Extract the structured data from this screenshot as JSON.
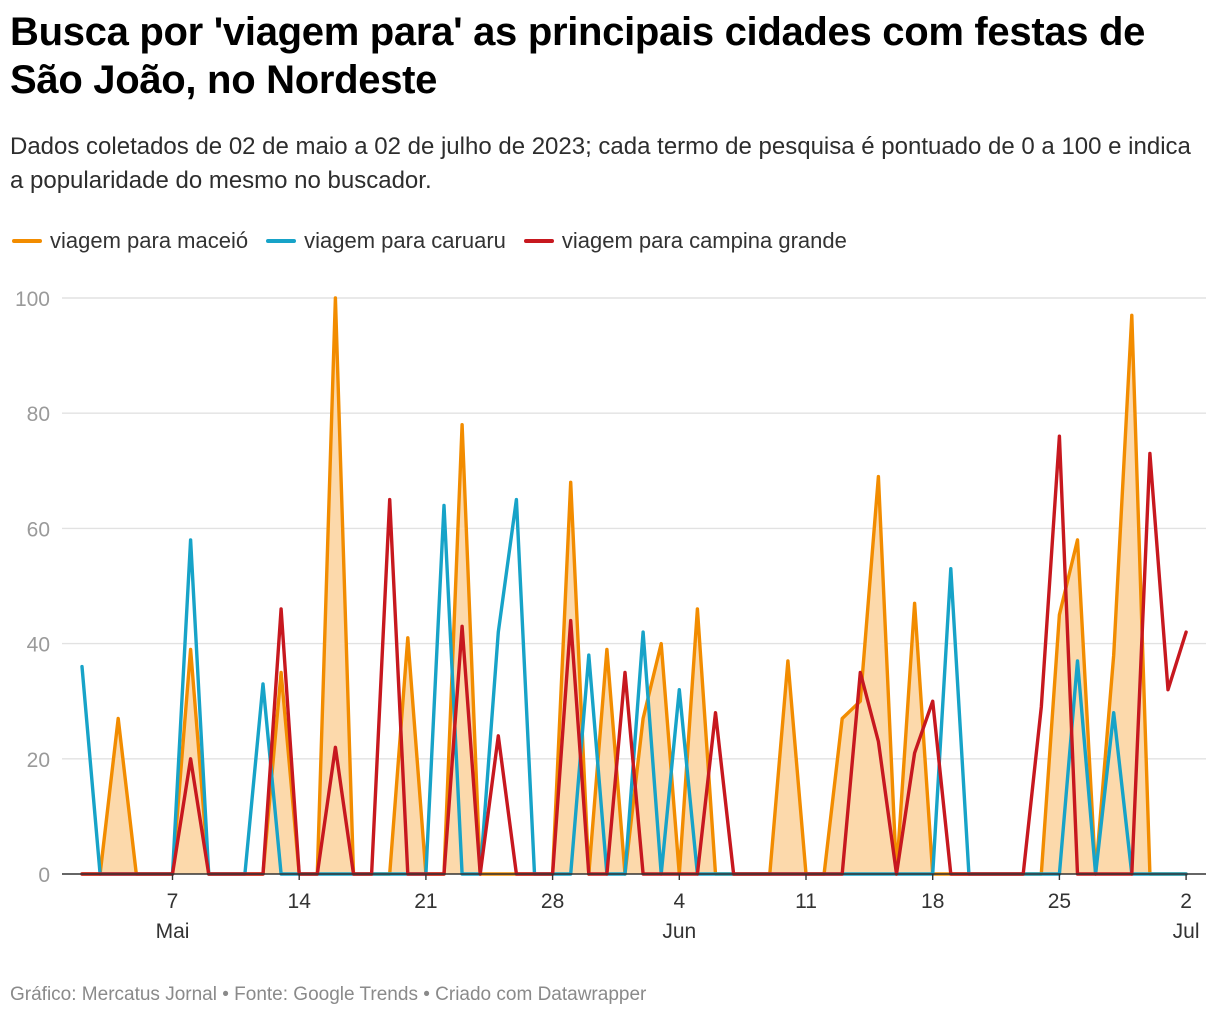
{
  "chart_data": {
    "type": "line",
    "title": "Busca por 'viagem para' as principais cidades com festas de São João, no Nordeste",
    "subtitle": "Dados coletados de 02 de maio a 02 de julho de 2023; cada termo de pesquisa é pontuado de 0 a 100 e indica a popularidade do mesmo no buscador.",
    "x_start": "2023-05-02",
    "x_end": "2023-07-02",
    "ylim": [
      0,
      100
    ],
    "y_ticks": [
      0,
      20,
      40,
      60,
      80,
      100
    ],
    "grid": true,
    "legend_position": "top-left",
    "x_ticks": [
      {
        "day": 5,
        "label": "7",
        "sub": "Mai"
      },
      {
        "day": 12,
        "label": "14",
        "sub": ""
      },
      {
        "day": 19,
        "label": "21",
        "sub": ""
      },
      {
        "day": 26,
        "label": "28",
        "sub": ""
      },
      {
        "day": 33,
        "label": "4",
        "sub": "Jun"
      },
      {
        "day": 40,
        "label": "11",
        "sub": ""
      },
      {
        "day": 47,
        "label": "18",
        "sub": ""
      },
      {
        "day": 54,
        "label": "25",
        "sub": ""
      },
      {
        "day": 61,
        "label": "2",
        "sub": "Jul"
      }
    ],
    "series": [
      {
        "name": "viagem para maceió",
        "color": "#f28c00",
        "fill": "#fcd9ab",
        "values": [
          0,
          0,
          27,
          0,
          0,
          0,
          39,
          0,
          0,
          0,
          0,
          35,
          0,
          0,
          100,
          0,
          0,
          0,
          41,
          0,
          0,
          78,
          0,
          0,
          0,
          0,
          0,
          68,
          0,
          39,
          0,
          27,
          40,
          0,
          46,
          0,
          0,
          0,
          0,
          37,
          0,
          0,
          27,
          30,
          69,
          0,
          47,
          0,
          0,
          0,
          0,
          0,
          0,
          0,
          45,
          58,
          0,
          38,
          97,
          0,
          0,
          0
        ]
      },
      {
        "name": "viagem para caruaru",
        "color": "#17a3c8",
        "values": [
          36,
          0,
          0,
          0,
          0,
          0,
          58,
          0,
          0,
          0,
          33,
          0,
          0,
          0,
          0,
          0,
          0,
          0,
          0,
          0,
          64,
          0,
          0,
          42,
          65,
          0,
          0,
          0,
          38,
          0,
          0,
          42,
          0,
          32,
          0,
          0,
          0,
          0,
          0,
          0,
          0,
          0,
          0,
          0,
          0,
          0,
          0,
          0,
          53,
          0,
          0,
          0,
          0,
          0,
          0,
          37,
          0,
          28,
          0,
          0,
          0,
          0
        ]
      },
      {
        "name": "viagem para campina grande",
        "color": "#c7181f",
        "values": [
          0,
          0,
          0,
          0,
          0,
          0,
          20,
          0,
          0,
          0,
          0,
          46,
          0,
          0,
          22,
          0,
          0,
          65,
          0,
          0,
          0,
          43,
          0,
          24,
          0,
          0,
          0,
          44,
          0,
          0,
          35,
          0,
          0,
          0,
          0,
          28,
          0,
          0,
          0,
          0,
          0,
          0,
          0,
          35,
          23,
          0,
          21,
          30,
          0,
          0,
          0,
          0,
          0,
          29,
          76,
          0,
          0,
          0,
          0,
          73,
          32,
          42
        ]
      }
    ]
  },
  "footer": "Gráfico: Mercatus Jornal • Fonte: Google Trends • Criado com Datawrapper"
}
